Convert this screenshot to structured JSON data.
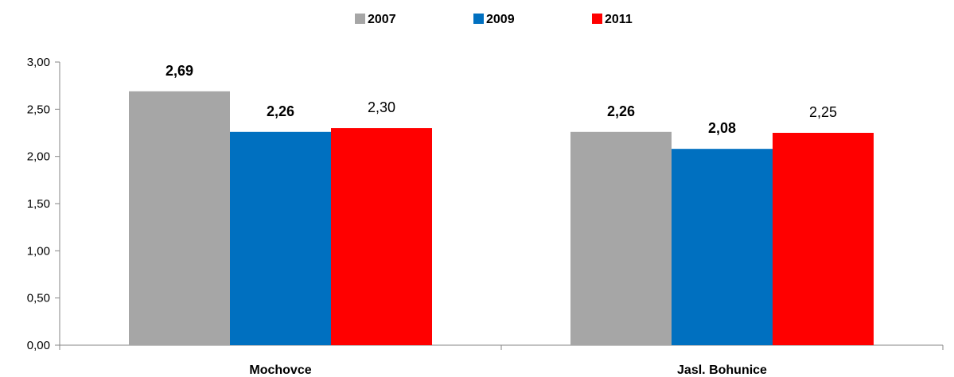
{
  "chart_data": {
    "type": "bar",
    "categories": [
      "Mochovce",
      "Jasl. Bohunice"
    ],
    "series": [
      {
        "name": "2007",
        "color": "#A6A6A6",
        "values": [
          2.69,
          2.26
        ],
        "labels": [
          "2,69",
          "2,26"
        ],
        "bold_labels": [
          true,
          true
        ]
      },
      {
        "name": "2009",
        "color": "#0070C0",
        "values": [
          2.26,
          2.08
        ],
        "labels": [
          "2,26",
          "2,08"
        ],
        "bold_labels": [
          true,
          true
        ]
      },
      {
        "name": "2011",
        "color": "#FF0000",
        "values": [
          2.3,
          2.25
        ],
        "labels": [
          "2,30",
          "2,25"
        ],
        "bold_labels": [
          false,
          false
        ]
      }
    ],
    "ylim": [
      0,
      3
    ],
    "yticks": [
      "0,00",
      "0,50",
      "1,00",
      "1,50",
      "2,00",
      "2,50",
      "3,00"
    ],
    "legend_position": "top-center",
    "grid": false
  }
}
